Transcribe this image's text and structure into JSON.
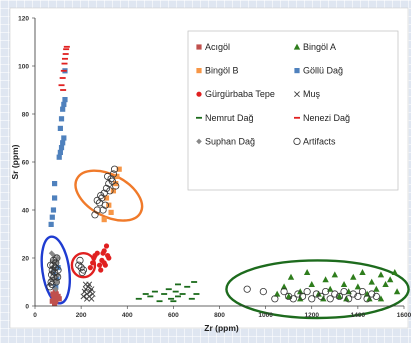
{
  "chart_data": {
    "type": "scatter",
    "xlabel": "Zr (ppm)",
    "ylabel": "Sr (ppm)",
    "xlim": [
      0,
      1600
    ],
    "ylim": [
      0,
      120
    ],
    "x_ticks": [
      "0",
      "200",
      "400",
      "600",
      "800",
      "1000",
      "1200",
      "1400",
      "1600"
    ],
    "y_ticks": [
      "0",
      "20",
      "40",
      "60",
      "80",
      "100",
      "120"
    ],
    "grid": false,
    "legend_position": "top-right",
    "series": [
      {
        "name": "Acıgöl",
        "marker": "square",
        "color": "#c0504d",
        "points": [
          [
            75,
            2
          ],
          [
            82,
            3
          ],
          [
            90,
            2
          ],
          [
            100,
            4
          ],
          [
            88,
            6
          ],
          [
            95,
            3
          ],
          [
            78,
            5
          ],
          [
            85,
            1
          ],
          [
            105,
            3
          ],
          [
            92,
            5
          ]
        ]
      },
      {
        "name": "Bingöl A",
        "marker": "triangle",
        "color": "#2e7d1c",
        "points": [
          [
            1080,
            8
          ],
          [
            1110,
            12
          ],
          [
            1150,
            6
          ],
          [
            1180,
            14
          ],
          [
            1200,
            9
          ],
          [
            1230,
            5
          ],
          [
            1260,
            11
          ],
          [
            1280,
            7
          ],
          [
            1300,
            13
          ],
          [
            1320,
            4
          ],
          [
            1340,
            9
          ],
          [
            1360,
            6
          ],
          [
            1380,
            12
          ],
          [
            1400,
            8
          ],
          [
            1420,
            14
          ],
          [
            1440,
            5
          ],
          [
            1460,
            10
          ],
          [
            1480,
            7
          ],
          [
            1500,
            13
          ],
          [
            1520,
            9
          ],
          [
            1540,
            11
          ],
          [
            1560,
            14
          ],
          [
            1570,
            6
          ],
          [
            1500,
            3
          ],
          [
            1450,
            3
          ],
          [
            1350,
            3
          ],
          [
            1250,
            3
          ],
          [
            1150,
            3
          ],
          [
            1100,
            4
          ],
          [
            1050,
            5
          ]
        ]
      },
      {
        "name": "Bingöl B",
        "marker": "square",
        "color": "#f79646",
        "points": [
          [
            300,
            36
          ],
          [
            320,
            42
          ],
          [
            340,
            48
          ],
          [
            355,
            54
          ],
          [
            365,
            57
          ],
          [
            310,
            45
          ],
          [
            330,
            39
          ],
          [
            350,
            51
          ]
        ]
      },
      {
        "name": "Göllü Dağ",
        "marker": "square",
        "color": "#4f81bd",
        "points": [
          [
            70,
            34
          ],
          [
            75,
            37
          ],
          [
            80,
            40
          ],
          [
            85,
            45
          ],
          [
            85,
            51
          ],
          [
            105,
            62
          ],
          [
            110,
            64
          ],
          [
            115,
            66
          ],
          [
            120,
            68
          ],
          [
            125,
            70
          ],
          [
            110,
            74
          ],
          [
            115,
            78
          ],
          [
            120,
            82
          ],
          [
            125,
            84
          ],
          [
            130,
            86
          ],
          [
            130,
            98
          ],
          [
            90,
            8
          ],
          [
            95,
            12
          ],
          [
            100,
            16
          ],
          [
            80,
            14
          ]
        ]
      },
      {
        "name": "Gürgürbaba Tepe",
        "marker": "dot",
        "color": "#e02020",
        "points": [
          [
            240,
            16
          ],
          [
            250,
            18
          ],
          [
            255,
            20
          ],
          [
            260,
            21
          ],
          [
            270,
            22
          ],
          [
            280,
            17
          ],
          [
            290,
            19
          ],
          [
            295,
            22
          ],
          [
            300,
            23
          ],
          [
            310,
            25
          ],
          [
            315,
            21
          ],
          [
            320,
            20
          ],
          [
            305,
            17
          ],
          [
            285,
            15
          ],
          [
            300,
            18
          ]
        ]
      },
      {
        "name": "Muş",
        "marker": "x",
        "color": "#404040",
        "points": [
          [
            210,
            4
          ],
          [
            215,
            6
          ],
          [
            220,
            7
          ],
          [
            225,
            5
          ],
          [
            230,
            8
          ],
          [
            235,
            4
          ],
          [
            240,
            6
          ],
          [
            245,
            7
          ],
          [
            250,
            5
          ],
          [
            225,
            3
          ],
          [
            235,
            9
          ],
          [
            245,
            3
          ],
          [
            220,
            9
          ]
        ]
      },
      {
        "name": "Nemrut Dağ",
        "marker": "dash",
        "color": "#1b6b1b",
        "points": [
          [
            450,
            3
          ],
          [
            480,
            5
          ],
          [
            500,
            4
          ],
          [
            520,
            6
          ],
          [
            540,
            2
          ],
          [
            560,
            5
          ],
          [
            580,
            7
          ],
          [
            590,
            3
          ],
          [
            610,
            6
          ],
          [
            620,
            4
          ],
          [
            640,
            5
          ],
          [
            660,
            8
          ],
          [
            680,
            3
          ],
          [
            690,
            10
          ],
          [
            700,
            5
          ],
          [
            620,
            9
          ],
          [
            600,
            2
          ]
        ]
      },
      {
        "name": "Nenezi Dağ",
        "marker": "dash",
        "color": "#e02020",
        "points": [
          [
            115,
            92
          ],
          [
            120,
            95
          ],
          [
            125,
            98
          ],
          [
            128,
            101
          ],
          [
            130,
            103
          ],
          [
            133,
            105
          ],
          [
            135,
            107
          ],
          [
            138,
            108
          ],
          [
            122,
            90
          ]
        ]
      },
      {
        "name": "Suphan Dağ",
        "marker": "diamond",
        "color": "#888888",
        "points": [
          [
            65,
            9
          ],
          [
            70,
            11
          ],
          [
            72,
            14
          ],
          [
            75,
            16
          ],
          [
            78,
            19
          ],
          [
            82,
            21
          ],
          [
            85,
            12
          ],
          [
            88,
            15
          ],
          [
            92,
            18
          ],
          [
            95,
            10
          ],
          [
            98,
            20
          ],
          [
            100,
            13
          ],
          [
            72,
            22
          ],
          [
            90,
            7
          ]
        ]
      },
      {
        "name": "Artifacts",
        "marker": "circle",
        "color": "#333333",
        "points": [
          [
            65,
            8
          ],
          [
            70,
            10
          ],
          [
            72,
            13
          ],
          [
            75,
            15
          ],
          [
            78,
            17
          ],
          [
            80,
            19
          ],
          [
            82,
            12
          ],
          [
            85,
            14
          ],
          [
            88,
            16
          ],
          [
            90,
            18
          ],
          [
            92,
            10
          ],
          [
            95,
            20
          ],
          [
            98,
            12
          ],
          [
            100,
            15
          ],
          [
            68,
            17
          ],
          [
            74,
            9
          ],
          [
            190,
            17
          ],
          [
            200,
            16
          ],
          [
            210,
            15
          ],
          [
            195,
            19
          ],
          [
            205,
            14
          ],
          [
            260,
            38
          ],
          [
            270,
            40
          ],
          [
            280,
            43
          ],
          [
            290,
            45
          ],
          [
            300,
            47
          ],
          [
            310,
            49
          ],
          [
            320,
            51
          ],
          [
            330,
            53
          ],
          [
            340,
            55
          ],
          [
            345,
            57
          ],
          [
            285,
            46
          ],
          [
            305,
            42
          ],
          [
            325,
            48
          ],
          [
            335,
            52
          ],
          [
            270,
            44
          ],
          [
            315,
            54
          ],
          [
            295,
            40
          ],
          [
            350,
            50
          ],
          [
            920,
            7
          ],
          [
            990,
            6
          ],
          [
            1040,
            3
          ],
          [
            1080,
            6
          ],
          [
            1100,
            4
          ],
          [
            1120,
            3
          ],
          [
            1140,
            5
          ],
          [
            1160,
            4
          ],
          [
            1180,
            6
          ],
          [
            1200,
            3
          ],
          [
            1220,
            5
          ],
          [
            1240,
            4
          ],
          [
            1260,
            6
          ],
          [
            1280,
            3
          ],
          [
            1300,
            5
          ],
          [
            1320,
            4
          ],
          [
            1340,
            6
          ],
          [
            1360,
            3
          ],
          [
            1380,
            5
          ],
          [
            1400,
            4
          ],
          [
            1420,
            6
          ],
          [
            1440,
            3
          ],
          [
            1460,
            5
          ],
          [
            1480,
            4
          ]
        ]
      }
    ],
    "ellipses": [
      {
        "name": "blue",
        "color": "#1f3cd1",
        "cx": 90,
        "cy": 15,
        "rx": 58,
        "ry": 14
      },
      {
        "name": "red",
        "color": "#e02020",
        "cx": 210,
        "cy": 17,
        "rx": 50,
        "ry": 5
      },
      {
        "name": "orange",
        "color": "#f07a2a",
        "cx": 320,
        "cy": 46,
        "rx": 90,
        "ry": 15
      },
      {
        "name": "green",
        "color": "#1d6b1d",
        "cx": 1225,
        "cy": 7,
        "rx": 395,
        "ry": 12
      }
    ]
  }
}
